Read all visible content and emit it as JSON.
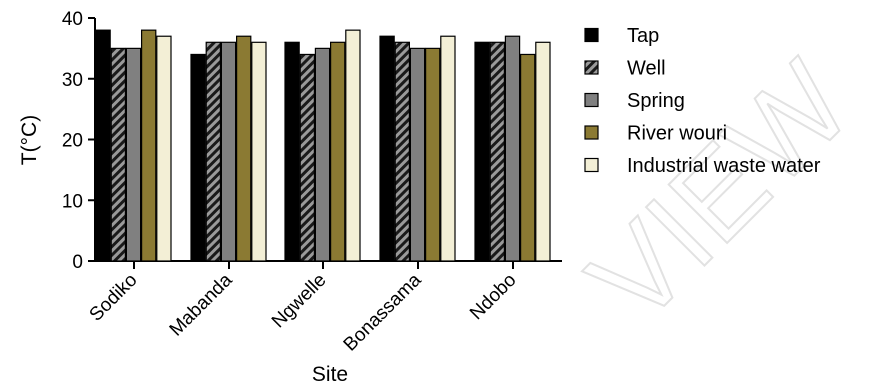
{
  "chart_data": {
    "type": "bar",
    "categories": [
      "Sodiko",
      "Mabanda",
      "Ngwelle",
      "Bonassama",
      "Ndobo"
    ],
    "series": [
      {
        "name": "Tap",
        "values": [
          38,
          34,
          36,
          37,
          36
        ],
        "color": "#000000",
        "pattern": "solid"
      },
      {
        "name": "Well",
        "values": [
          35,
          36,
          34,
          36,
          36
        ],
        "color": "#9a9a9a",
        "pattern": "diagonal-stripes"
      },
      {
        "name": "Spring",
        "values": [
          35,
          36,
          35,
          35,
          37
        ],
        "color": "#808080",
        "pattern": "solid"
      },
      {
        "name": "River wouri",
        "values": [
          38,
          37,
          36,
          35,
          34
        ],
        "color": "#8b7a33",
        "pattern": "solid"
      },
      {
        "name": "Industrial waste water",
        "values": [
          37,
          36,
          38,
          37,
          36
        ],
        "color": "#f3efd6",
        "pattern": "solid"
      }
    ],
    "xlabel": "Site",
    "ylabel": "T(°C)",
    "ylim": [
      0,
      40
    ],
    "yticks": [
      0,
      10,
      20,
      30,
      40
    ],
    "grid": false,
    "legend_position": "right"
  },
  "watermark": "UNDER PEER REVIEW"
}
